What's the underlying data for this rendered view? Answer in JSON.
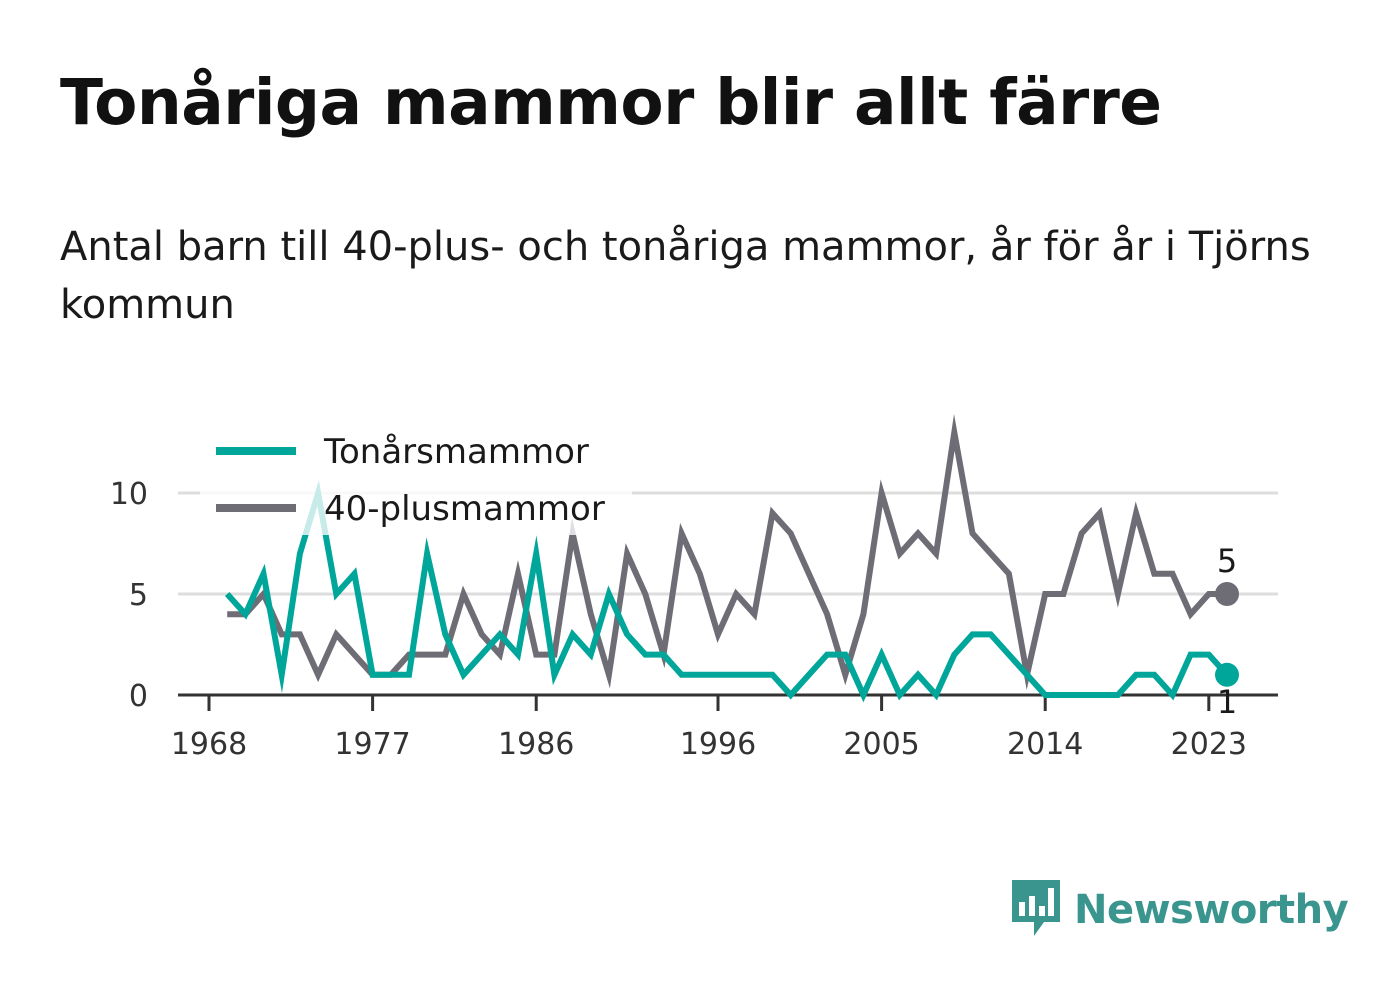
{
  "title": "Tonåriga mammor blir allt färre",
  "subtitle": "Antal barn till 40-plus- och tonåriga mammor, år för år i Tjörns kommun",
  "brand": {
    "name": "Newsworthy",
    "icon": "newsworthy-logo-icon",
    "color": "#3a958f"
  },
  "chart_data": {
    "type": "line",
    "x_ticks": [
      1968,
      1977,
      1986,
      1996,
      2005,
      2014,
      2023
    ],
    "y_ticks": [
      0,
      5,
      10
    ],
    "xlim": [
      1968,
      2024
    ],
    "ylim": [
      0,
      13
    ],
    "grid": true,
    "legend_position": "top-left",
    "x": [
      1969,
      1970,
      1971,
      1972,
      1973,
      1974,
      1975,
      1976,
      1977,
      1978,
      1979,
      1980,
      1981,
      1982,
      1983,
      1984,
      1985,
      1986,
      1987,
      1988,
      1989,
      1990,
      1991,
      1992,
      1993,
      1994,
      1995,
      1996,
      1997,
      1998,
      1999,
      2000,
      2001,
      2002,
      2003,
      2004,
      2005,
      2006,
      2007,
      2008,
      2009,
      2010,
      2011,
      2012,
      2013,
      2014,
      2015,
      2016,
      2017,
      2018,
      2019,
      2020,
      2021,
      2022,
      2023,
      2024
    ],
    "series": [
      {
        "name": "Tonårsmammor",
        "color": "#00a69a",
        "values": [
          5,
          4,
          6,
          1,
          7,
          10,
          5,
          6,
          1,
          1,
          1,
          7,
          3,
          1,
          2,
          3,
          2,
          7,
          1,
          3,
          2,
          5,
          3,
          2,
          2,
          1,
          1,
          1,
          1,
          1,
          1,
          0,
          1,
          2,
          2,
          0,
          2,
          0,
          1,
          0,
          2,
          3,
          3,
          2,
          1,
          0,
          0,
          0,
          0,
          0,
          1,
          1,
          0,
          2,
          2,
          1
        ],
        "end_label": "1"
      },
      {
        "name": "40-plusmammor",
        "color": "#6e6d75",
        "values": [
          4,
          4,
          5,
          3,
          3,
          1,
          3,
          2,
          1,
          1,
          2,
          2,
          2,
          5,
          3,
          2,
          6,
          2,
          2,
          8,
          4,
          1,
          7,
          5,
          2,
          8,
          6,
          3,
          5,
          4,
          9,
          8,
          6,
          4,
          1,
          4,
          10,
          7,
          8,
          7,
          13,
          8,
          7,
          6,
          1,
          5,
          5,
          8,
          9,
          5,
          9,
          6,
          6,
          4,
          5,
          5
        ],
        "end_label": "5"
      }
    ]
  }
}
